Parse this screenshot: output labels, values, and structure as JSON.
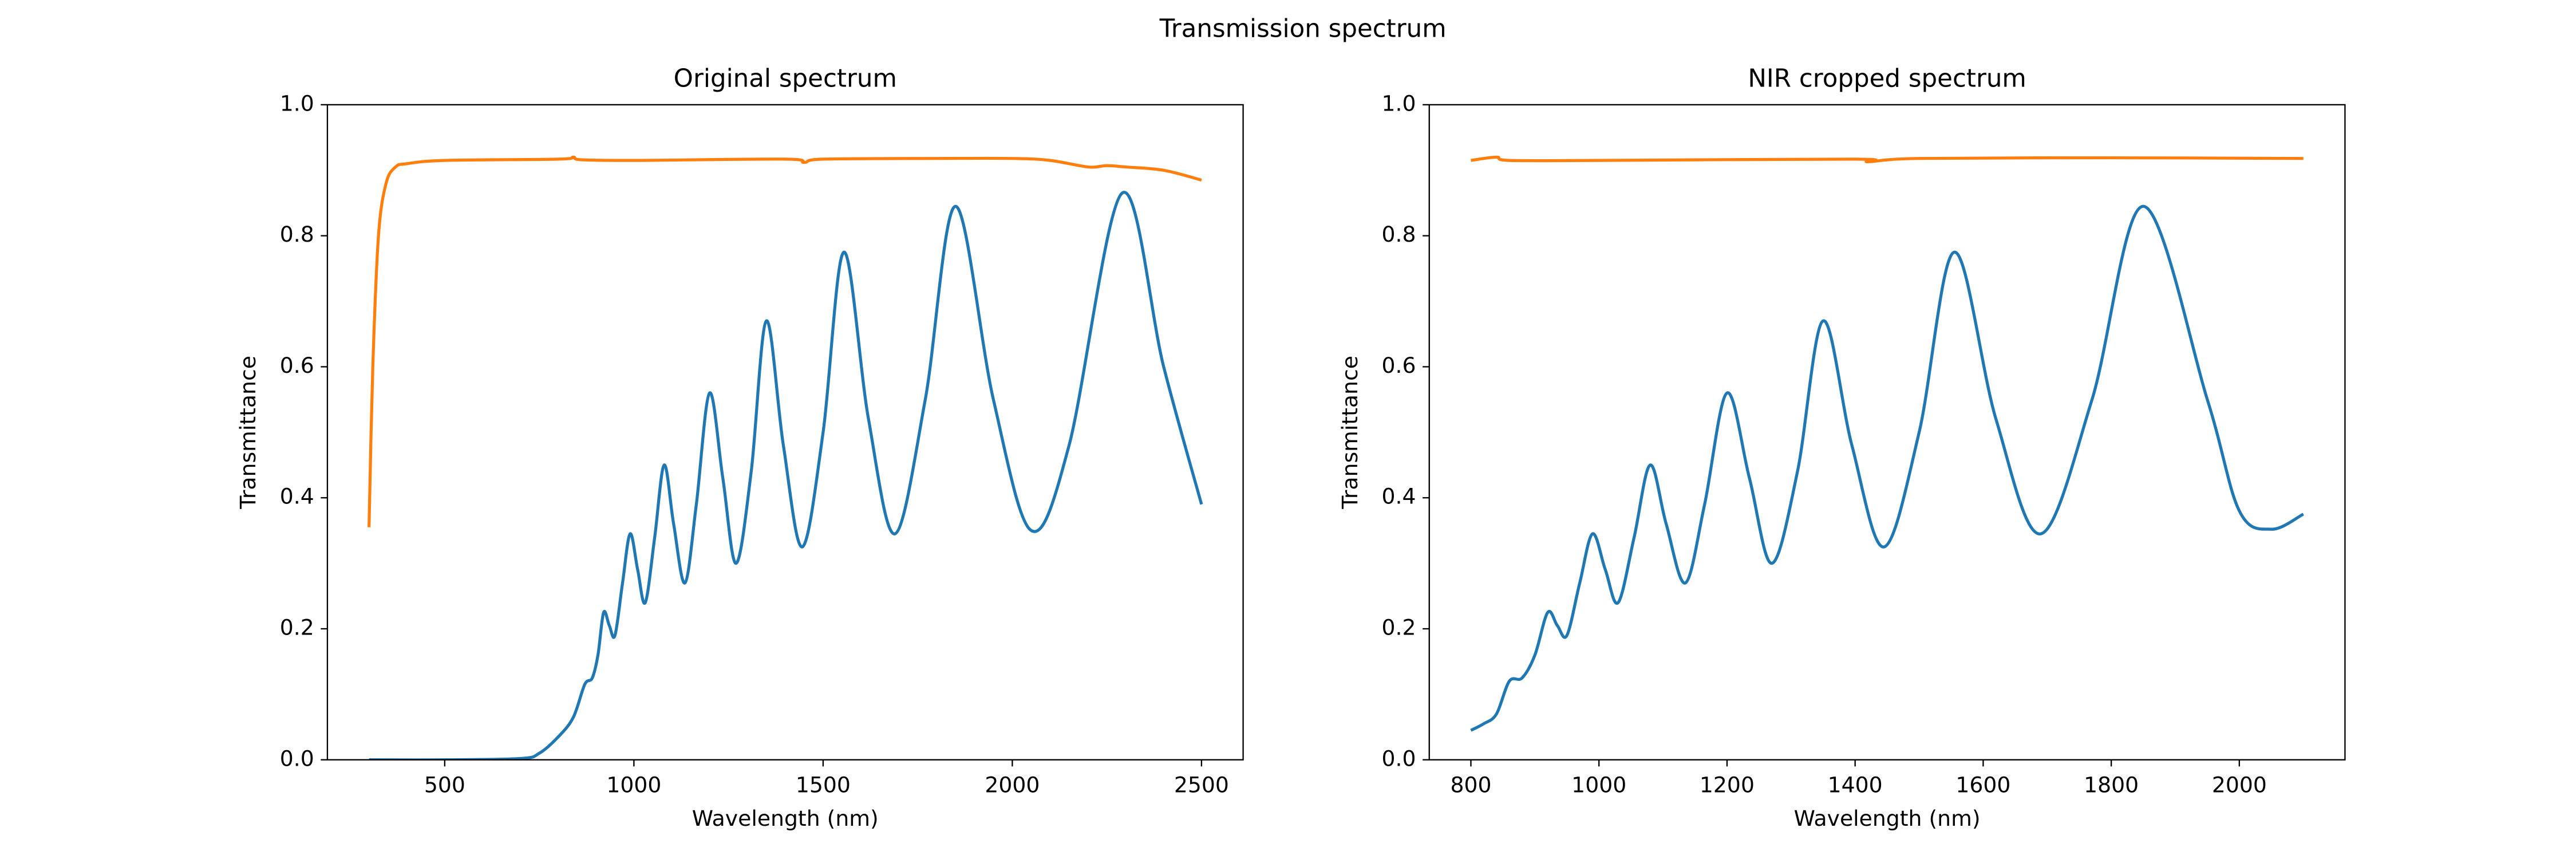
{
  "title": "Transmission spectrum",
  "chart_data": [
    {
      "type": "line",
      "title": "Original spectrum",
      "x_label": "Wavelength (nm)",
      "y_label": "Transmittance",
      "xlim": [
        190,
        2610
      ],
      "xticks": [
        500,
        1000,
        1500,
        2000,
        2500
      ],
      "ylim": [
        0,
        1
      ],
      "yticks": [
        {
          "value": 0,
          "label": "0.0"
        },
        {
          "value": 0.2,
          "label": "0.2"
        },
        {
          "value": 0.4,
          "label": "0.4"
        },
        {
          "value": 0.6,
          "label": "0.6"
        },
        {
          "value": 0.8,
          "label": "0.8"
        },
        {
          "value": 1,
          "label": "1.0"
        }
      ],
      "series": [
        {
          "color": "#1f77b4",
          "x": [
            300,
            500,
            700,
            750,
            800,
            840,
            870,
            890,
            905,
            920,
            935,
            950,
            970,
            990,
            1010,
            1030,
            1055,
            1080,
            1105,
            1135,
            1165,
            1200,
            1235,
            1270,
            1310,
            1350,
            1395,
            1445,
            1500,
            1555,
            1620,
            1690,
            1770,
            1850,
            1950,
            2050,
            2150,
            2290,
            2400,
            2500
          ],
          "values": [
            0,
            0,
            0.002,
            0.01,
            0.035,
            0.065,
            0.115,
            0.125,
            0.16,
            0.225,
            0.205,
            0.19,
            0.27,
            0.345,
            0.29,
            0.24,
            0.34,
            0.45,
            0.36,
            0.27,
            0.39,
            0.56,
            0.43,
            0.3,
            0.44,
            0.67,
            0.48,
            0.325,
            0.5,
            0.775,
            0.52,
            0.345,
            0.55,
            0.845,
            0.55,
            0.35,
            0.48,
            0.865,
            0.6,
            0.39
          ]
        },
        {
          "color": "#ff7f0e",
          "x": [
            300,
            310,
            325,
            345,
            370,
            400,
            500,
            800,
            840,
            860,
            1000,
            1400,
            1450,
            1500,
            1800,
            2000,
            2100,
            2200,
            2250,
            2300,
            2400,
            2500
          ],
          "values": [
            0.355,
            0.6,
            0.8,
            0.88,
            0.905,
            0.91,
            0.915,
            0.917,
            0.92,
            0.916,
            0.915,
            0.917,
            0.912,
            0.917,
            0.918,
            0.918,
            0.915,
            0.905,
            0.907,
            0.905,
            0.9,
            0.885
          ]
        }
      ]
    },
    {
      "type": "line",
      "title": "NIR cropped spectrum",
      "x_label": "Wavelength (nm)",
      "y_label": "Transmittance",
      "xlim": [
        735,
        2165
      ],
      "xticks": [
        800,
        1000,
        1200,
        1400,
        1600,
        1800,
        2000
      ],
      "ylim": [
        0,
        1
      ],
      "yticks": [
        {
          "value": 0,
          "label": "0.0"
        },
        {
          "value": 0.2,
          "label": "0.2"
        },
        {
          "value": 0.4,
          "label": "0.4"
        },
        {
          "value": 0.6,
          "label": "0.6"
        },
        {
          "value": 0.8,
          "label": "0.8"
        },
        {
          "value": 1,
          "label": "1.0"
        }
      ],
      "series": [
        {
          "color": "#1f77b4",
          "x": [
            800,
            820,
            840,
            860,
            880,
            900,
            920,
            935,
            950,
            970,
            990,
            1010,
            1030,
            1055,
            1080,
            1105,
            1135,
            1165,
            1200,
            1235,
            1270,
            1310,
            1350,
            1395,
            1445,
            1500,
            1555,
            1620,
            1690,
            1770,
            1850,
            1950,
            2000,
            2050,
            2100
          ],
          "values": [
            0.045,
            0.055,
            0.07,
            0.12,
            0.125,
            0.16,
            0.225,
            0.205,
            0.19,
            0.27,
            0.345,
            0.29,
            0.24,
            0.34,
            0.45,
            0.36,
            0.27,
            0.39,
            0.56,
            0.43,
            0.3,
            0.44,
            0.67,
            0.48,
            0.325,
            0.5,
            0.775,
            0.52,
            0.345,
            0.55,
            0.845,
            0.55,
            0.38,
            0.352,
            0.375
          ]
        },
        {
          "color": "#ff7f0e",
          "x": [
            800,
            840,
            860,
            1000,
            1400,
            1420,
            1500,
            1800,
            2100
          ],
          "values": [
            0.915,
            0.92,
            0.915,
            0.915,
            0.917,
            0.913,
            0.918,
            0.919,
            0.918
          ]
        }
      ]
    }
  ]
}
